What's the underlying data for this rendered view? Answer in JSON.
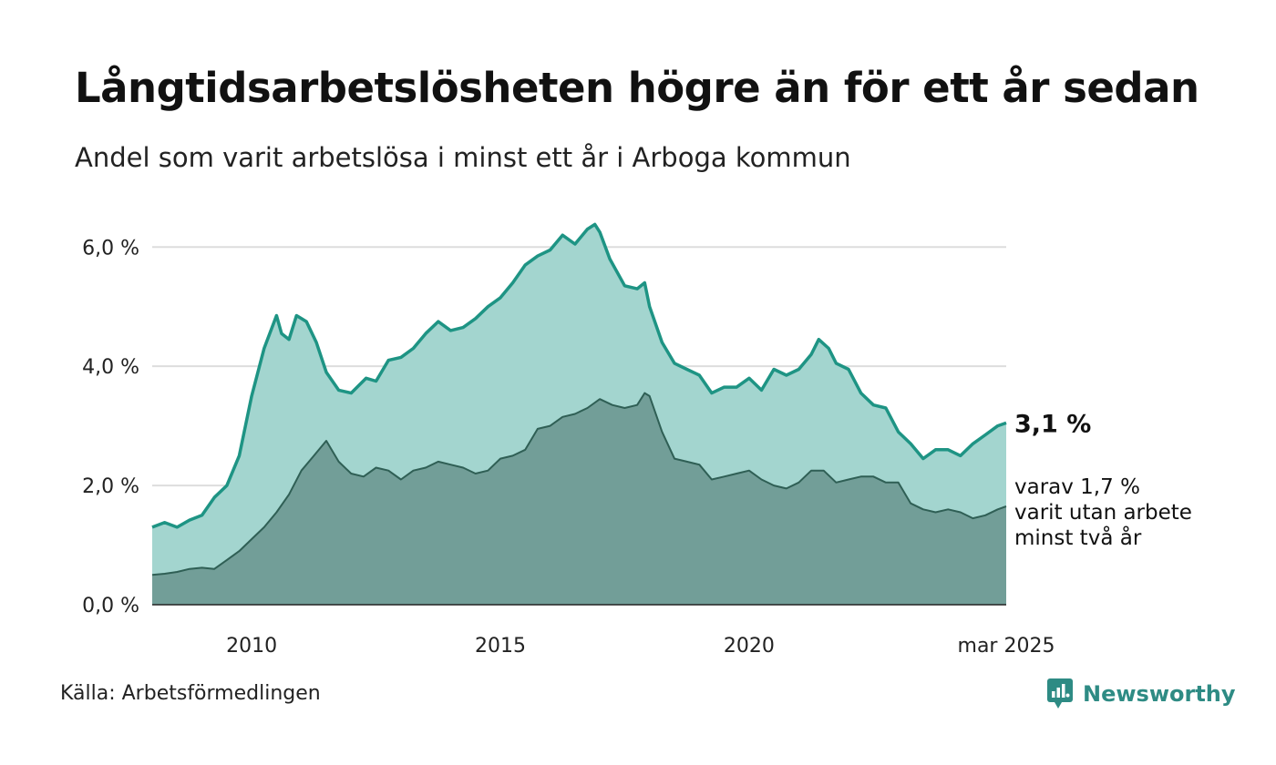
{
  "header": {
    "title": "Långtidsarbetslösheten högre än för ett år sedan",
    "subtitle": "Andel som varit arbetslösa i minst ett år i Arboga kommun"
  },
  "footer": {
    "source": "Källa: Arbetsförmedlingen",
    "brand": "Newsworthy",
    "brand_icon": "newsworthy-logo-icon"
  },
  "colors": {
    "series_total_line": "#1e9484",
    "series_total_fill": "#a3d5cf",
    "series_long_line": "#2f5f55",
    "series_long_fill": "#729e98",
    "grid": "#dddddd",
    "brand": "#2e8b84"
  },
  "chart_data": {
    "type": "area",
    "x_unit": "year (decimal)",
    "xlim": [
      2008.0,
      2025.17
    ],
    "ylim": [
      0,
      6.6
    ],
    "y_ticks": [
      0,
      2,
      4,
      6
    ],
    "y_tick_labels": [
      "0,0 %",
      "2,0 %",
      "4,0 %",
      "6,0 %"
    ],
    "x_ticks": [
      2010,
      2015,
      2020,
      2025.17
    ],
    "x_tick_labels": [
      "2010",
      "2015",
      "2020",
      "mar 2025"
    ],
    "grid": true,
    "annotations": {
      "last_value": "3,1 %",
      "sub_label": [
        "varav 1,7 %",
        "varit utan arbete",
        "minst två år"
      ]
    },
    "series": [
      {
        "key": "total",
        "x": [
          2008.0,
          2008.25,
          2008.5,
          2008.75,
          2009.0,
          2009.25,
          2009.5,
          2009.75,
          2010.0,
          2010.25,
          2010.5,
          2010.6,
          2010.75,
          2010.9,
          2011.0,
          2011.1,
          2011.3,
          2011.5,
          2011.75,
          2012.0,
          2012.3,
          2012.5,
          2012.75,
          2013.0,
          2013.25,
          2013.5,
          2013.75,
          2014.0,
          2014.25,
          2014.5,
          2014.75,
          2015.0,
          2015.25,
          2015.5,
          2015.75,
          2016.0,
          2016.25,
          2016.5,
          2016.75,
          2016.9,
          2017.0,
          2017.2,
          2017.5,
          2017.75,
          2017.9,
          2018.0,
          2018.25,
          2018.5,
          2018.75,
          2019.0,
          2019.25,
          2019.5,
          2019.75,
          2020.0,
          2020.25,
          2020.5,
          2020.75,
          2021.0,
          2021.25,
          2021.4,
          2021.6,
          2021.75,
          2022.0,
          2022.25,
          2022.5,
          2022.75,
          2023.0,
          2023.25,
          2023.5,
          2023.75,
          2024.0,
          2024.25,
          2024.5,
          2024.75,
          2025.0,
          2025.17
        ],
        "y": [
          1.3,
          1.38,
          1.3,
          1.42,
          1.5,
          1.8,
          2.0,
          2.5,
          3.5,
          4.3,
          4.85,
          4.55,
          4.45,
          4.85,
          4.8,
          4.75,
          4.4,
          3.9,
          3.6,
          3.55,
          3.8,
          3.75,
          4.1,
          4.15,
          4.3,
          4.55,
          4.75,
          4.6,
          4.65,
          4.8,
          5.0,
          5.15,
          5.4,
          5.7,
          5.85,
          5.95,
          6.2,
          6.05,
          6.3,
          6.38,
          6.25,
          5.8,
          5.35,
          5.3,
          5.4,
          5.0,
          4.4,
          4.05,
          3.95,
          3.85,
          3.55,
          3.65,
          3.65,
          3.8,
          3.6,
          3.95,
          3.85,
          3.95,
          4.2,
          4.45,
          4.3,
          4.05,
          3.95,
          3.55,
          3.35,
          3.3,
          2.9,
          2.7,
          2.45,
          2.6,
          2.6,
          2.5,
          2.7,
          2.85,
          3.0,
          3.05
        ]
      },
      {
        "key": "long",
        "x": [
          2008.0,
          2008.25,
          2008.5,
          2008.75,
          2009.0,
          2009.25,
          2009.5,
          2009.75,
          2010.0,
          2010.25,
          2010.5,
          2010.75,
          2011.0,
          2011.25,
          2011.5,
          2011.75,
          2012.0,
          2012.25,
          2012.5,
          2012.75,
          2013.0,
          2013.25,
          2013.5,
          2013.75,
          2014.0,
          2014.25,
          2014.5,
          2014.75,
          2015.0,
          2015.25,
          2015.5,
          2015.75,
          2016.0,
          2016.25,
          2016.5,
          2016.75,
          2017.0,
          2017.25,
          2017.5,
          2017.75,
          2017.9,
          2018.0,
          2018.25,
          2018.5,
          2018.75,
          2019.0,
          2019.25,
          2019.5,
          2019.75,
          2020.0,
          2020.25,
          2020.5,
          2020.75,
          2021.0,
          2021.25,
          2021.5,
          2021.75,
          2022.0,
          2022.25,
          2022.5,
          2022.75,
          2023.0,
          2023.25,
          2023.5,
          2023.75,
          2024.0,
          2024.25,
          2024.5,
          2024.75,
          2025.0,
          2025.17
        ],
        "y": [
          0.5,
          0.52,
          0.55,
          0.6,
          0.62,
          0.6,
          0.75,
          0.9,
          1.1,
          1.3,
          1.55,
          1.85,
          2.25,
          2.5,
          2.75,
          2.4,
          2.2,
          2.15,
          2.3,
          2.25,
          2.1,
          2.25,
          2.3,
          2.4,
          2.35,
          2.3,
          2.2,
          2.25,
          2.45,
          2.5,
          2.6,
          2.95,
          3.0,
          3.15,
          3.2,
          3.3,
          3.45,
          3.35,
          3.3,
          3.35,
          3.55,
          3.5,
          2.9,
          2.45,
          2.4,
          2.35,
          2.1,
          2.15,
          2.2,
          2.25,
          2.1,
          2.0,
          1.95,
          2.05,
          2.25,
          2.25,
          2.05,
          2.1,
          2.15,
          2.15,
          2.05,
          2.05,
          1.7,
          1.6,
          1.55,
          1.6,
          1.55,
          1.45,
          1.5,
          1.6,
          1.65
        ]
      }
    ]
  }
}
